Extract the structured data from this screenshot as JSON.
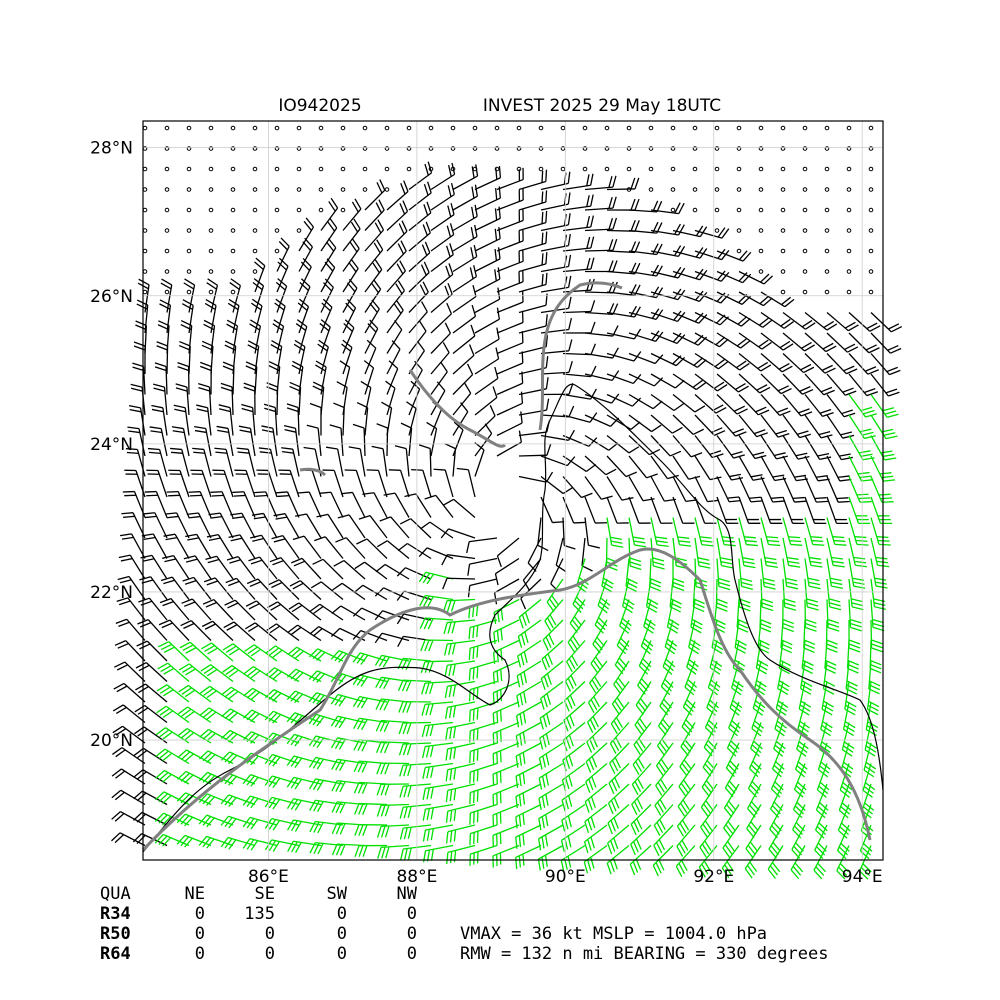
{
  "title_left": "IO942025",
  "title_right": "INVEST 2025 29 May 18UTC",
  "map": {
    "lonlim": [
      84.31,
      94.28
    ],
    "latlim": [
      18.38,
      28.36
    ],
    "lon_ticks": [
      {
        "value": 86,
        "label": "86°E"
      },
      {
        "value": 88,
        "label": "88°E"
      },
      {
        "value": 90,
        "label": "90°E"
      },
      {
        "value": 92,
        "label": "92°E"
      },
      {
        "value": 94,
        "label": "94°E"
      }
    ],
    "lat_ticks": [
      {
        "value": 20,
        "label": "20°N"
      },
      {
        "value": 22,
        "label": "22°N"
      },
      {
        "value": 24,
        "label": "24°N"
      },
      {
        "value": 26,
        "label": "26°N"
      },
      {
        "value": 28,
        "label": "28°N"
      }
    ]
  },
  "table": {
    "header": [
      "QUA",
      "NE",
      "SE",
      "SW",
      "NW"
    ],
    "rows": [
      [
        "R34",
        "0",
        "135",
        "0",
        "0"
      ],
      [
        "R50",
        "0",
        "0",
        "0",
        "0"
      ],
      [
        "R64",
        "0",
        "0",
        "0",
        "0"
      ]
    ]
  },
  "stats": [
    "VMAX =  36 kt MSLP = 1004.0 hPa",
    "RMW = 132 n mi BEARING = 330 degrees"
  ]
}
